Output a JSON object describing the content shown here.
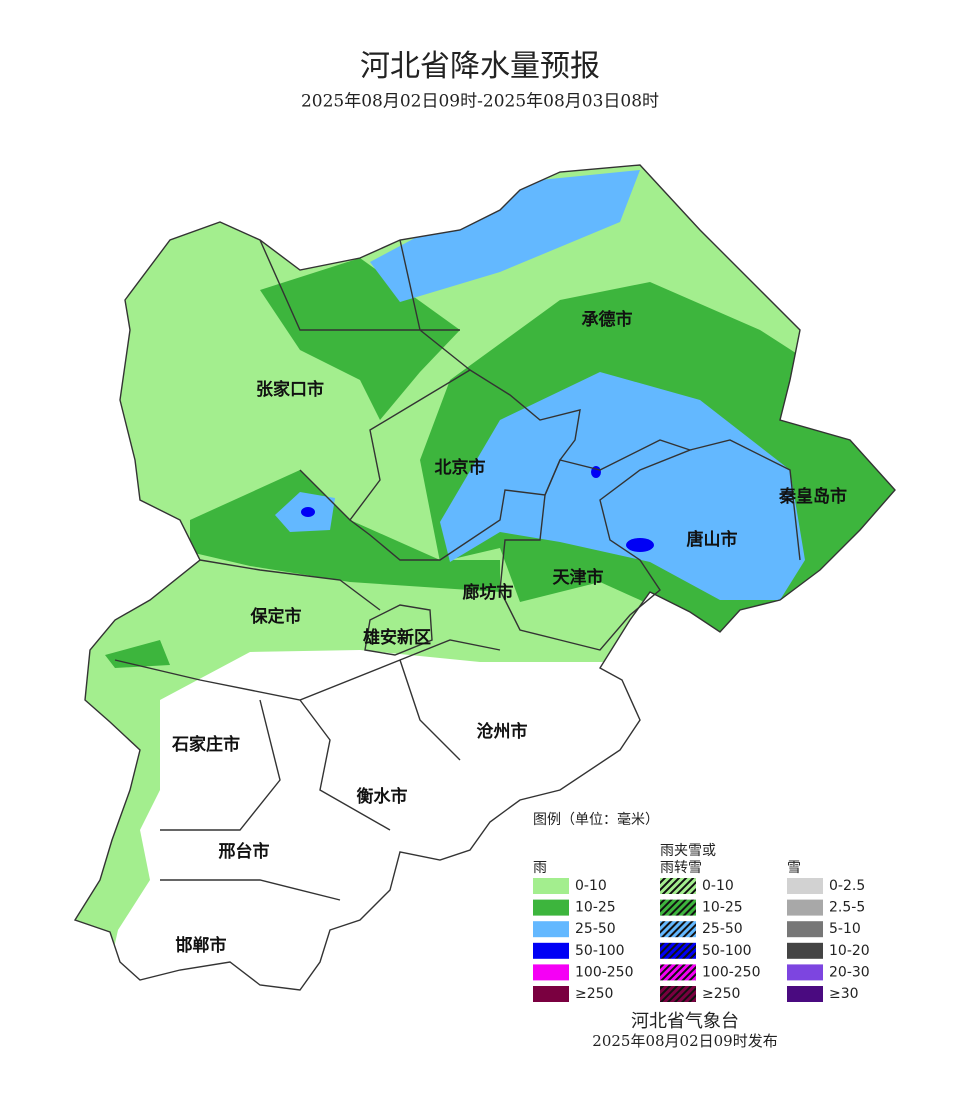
{
  "header": {
    "title": "河北省降水量预报",
    "subtitle": "2025年08月02日09时-2025年08月03日08时"
  },
  "cities": [
    "承德市",
    "张家口市",
    "北京市",
    "秦皇岛市",
    "唐山市",
    "天津市",
    "廊坊市",
    "保定市",
    "雄安新区",
    "石家庄市",
    "沧州市",
    "衡水市",
    "邢台市",
    "邯郸市"
  ],
  "legend": {
    "title": "图例（单位：毫米）",
    "groups": [
      {
        "title": [
          "雨"
        ],
        "hatched": false,
        "items": [
          {
            "label": "0-10",
            "color": "#a3ee8e"
          },
          {
            "label": "10-25",
            "color": "#3db53d"
          },
          {
            "label": "25-50",
            "color": "#63b8ff"
          },
          {
            "label": "50-100",
            "color": "#0000f5"
          },
          {
            "label": "100-250",
            "color": "#f500f5"
          },
          {
            "label": "≥250",
            "color": "#7a0040"
          }
        ]
      },
      {
        "title": [
          "雨夹雪或",
          "雨转雪"
        ],
        "hatched": true,
        "items": [
          {
            "label": "0-10",
            "color": "#a3ee8e"
          },
          {
            "label": "10-25",
            "color": "#3db53d"
          },
          {
            "label": "25-50",
            "color": "#63b8ff"
          },
          {
            "label": "50-100",
            "color": "#0000f5"
          },
          {
            "label": "100-250",
            "color": "#f500f5"
          },
          {
            "label": "≥250",
            "color": "#7a0040"
          }
        ]
      },
      {
        "title": [
          "雪"
        ],
        "hatched": false,
        "items": [
          {
            "label": "0-2.5",
            "color": "#d2d2d2"
          },
          {
            "label": "2.5-5",
            "color": "#a8a8a8"
          },
          {
            "label": "5-10",
            "color": "#777777"
          },
          {
            "label": "10-20",
            "color": "#444444"
          },
          {
            "label": "20-30",
            "color": "#7d45e0"
          },
          {
            "label": "≥30",
            "color": "#4a0a80"
          }
        ]
      }
    ]
  },
  "footer": {
    "issuer": "河北省气象台",
    "issued": "2025年08月02日09时发布"
  }
}
